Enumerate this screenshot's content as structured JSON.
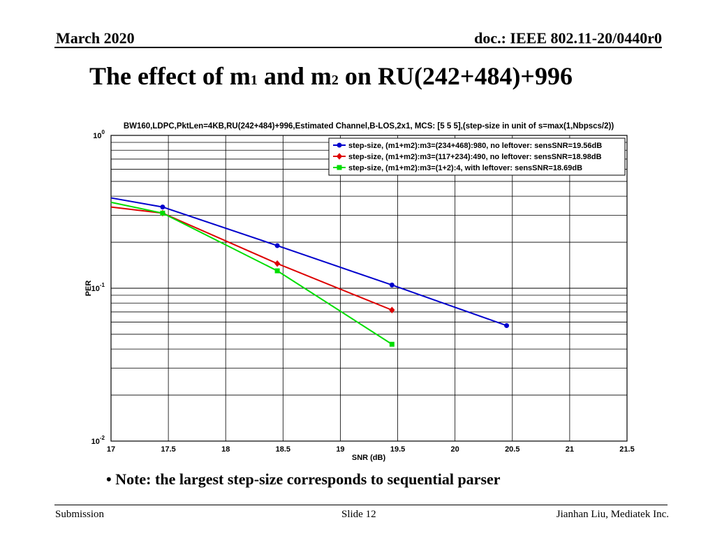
{
  "header": {
    "left": "March 2020",
    "right": "doc.: IEEE 802.11-20/0440r0"
  },
  "slide_title": {
    "part1": "The effect of m",
    "sub1": "1",
    "part2": " and m",
    "sub2": "2",
    "part3": " on RU(242+484)+996"
  },
  "note": "• Note: the largest step-size corresponds to sequential parser",
  "footer": {
    "left": "Submission",
    "center": "Slide 12",
    "right": "Jianhan Liu, Mediatek Inc."
  },
  "chart_data": {
    "type": "line",
    "title": "BW160,LDPC,PktLen=4KB,RU(242+484)+996,Estimated Channel,B-LOS,2x1, MCS: [5  5  5],(step-size in unit of s=max(1,Nbpscs/2))",
    "xlabel": "SNR (dB)",
    "ylabel": "PER",
    "xlim": [
      17,
      21.5
    ],
    "ylim": [
      0.01,
      1
    ],
    "yscale": "log",
    "grid": true,
    "legend_position": "top-right",
    "x_ticks": [
      "17",
      "17.5",
      "18",
      "18.5",
      "19",
      "19.5",
      "20",
      "20.5",
      "21",
      "21.5"
    ],
    "y_ticks": [
      {
        "base": "10",
        "exp": "-2"
      },
      {
        "base": "10",
        "exp": "-1"
      },
      {
        "base": "10",
        "exp": "0"
      }
    ],
    "series": [
      {
        "name": "step-size, (m1+m2):m3=(234+468):980, no leftover:   sensSNR=19.56dB",
        "color": "#0000cc",
        "marker": "circle",
        "x": [
          17,
          17.45,
          18.45,
          19.45,
          20.45
        ],
        "y": [
          0.39,
          0.34,
          0.19,
          0.105,
          0.057
        ]
      },
      {
        "name": "step-size, (m1+m2):m3=(117+234):490, no leftover:   sensSNR=18.98dB",
        "color": "#dd0000",
        "marker": "diamond",
        "x": [
          17,
          17.45,
          18.45,
          19.45
        ],
        "y": [
          0.34,
          0.31,
          0.145,
          0.072
        ]
      },
      {
        "name": "step-size, (m1+m2):m3=(1+2):4, with leftover:   sensSNR=18.69dB",
        "color": "#00dd00",
        "marker": "square",
        "x": [
          17,
          17.45,
          18.45,
          19.45
        ],
        "y": [
          0.365,
          0.31,
          0.13,
          0.043
        ]
      }
    ]
  }
}
